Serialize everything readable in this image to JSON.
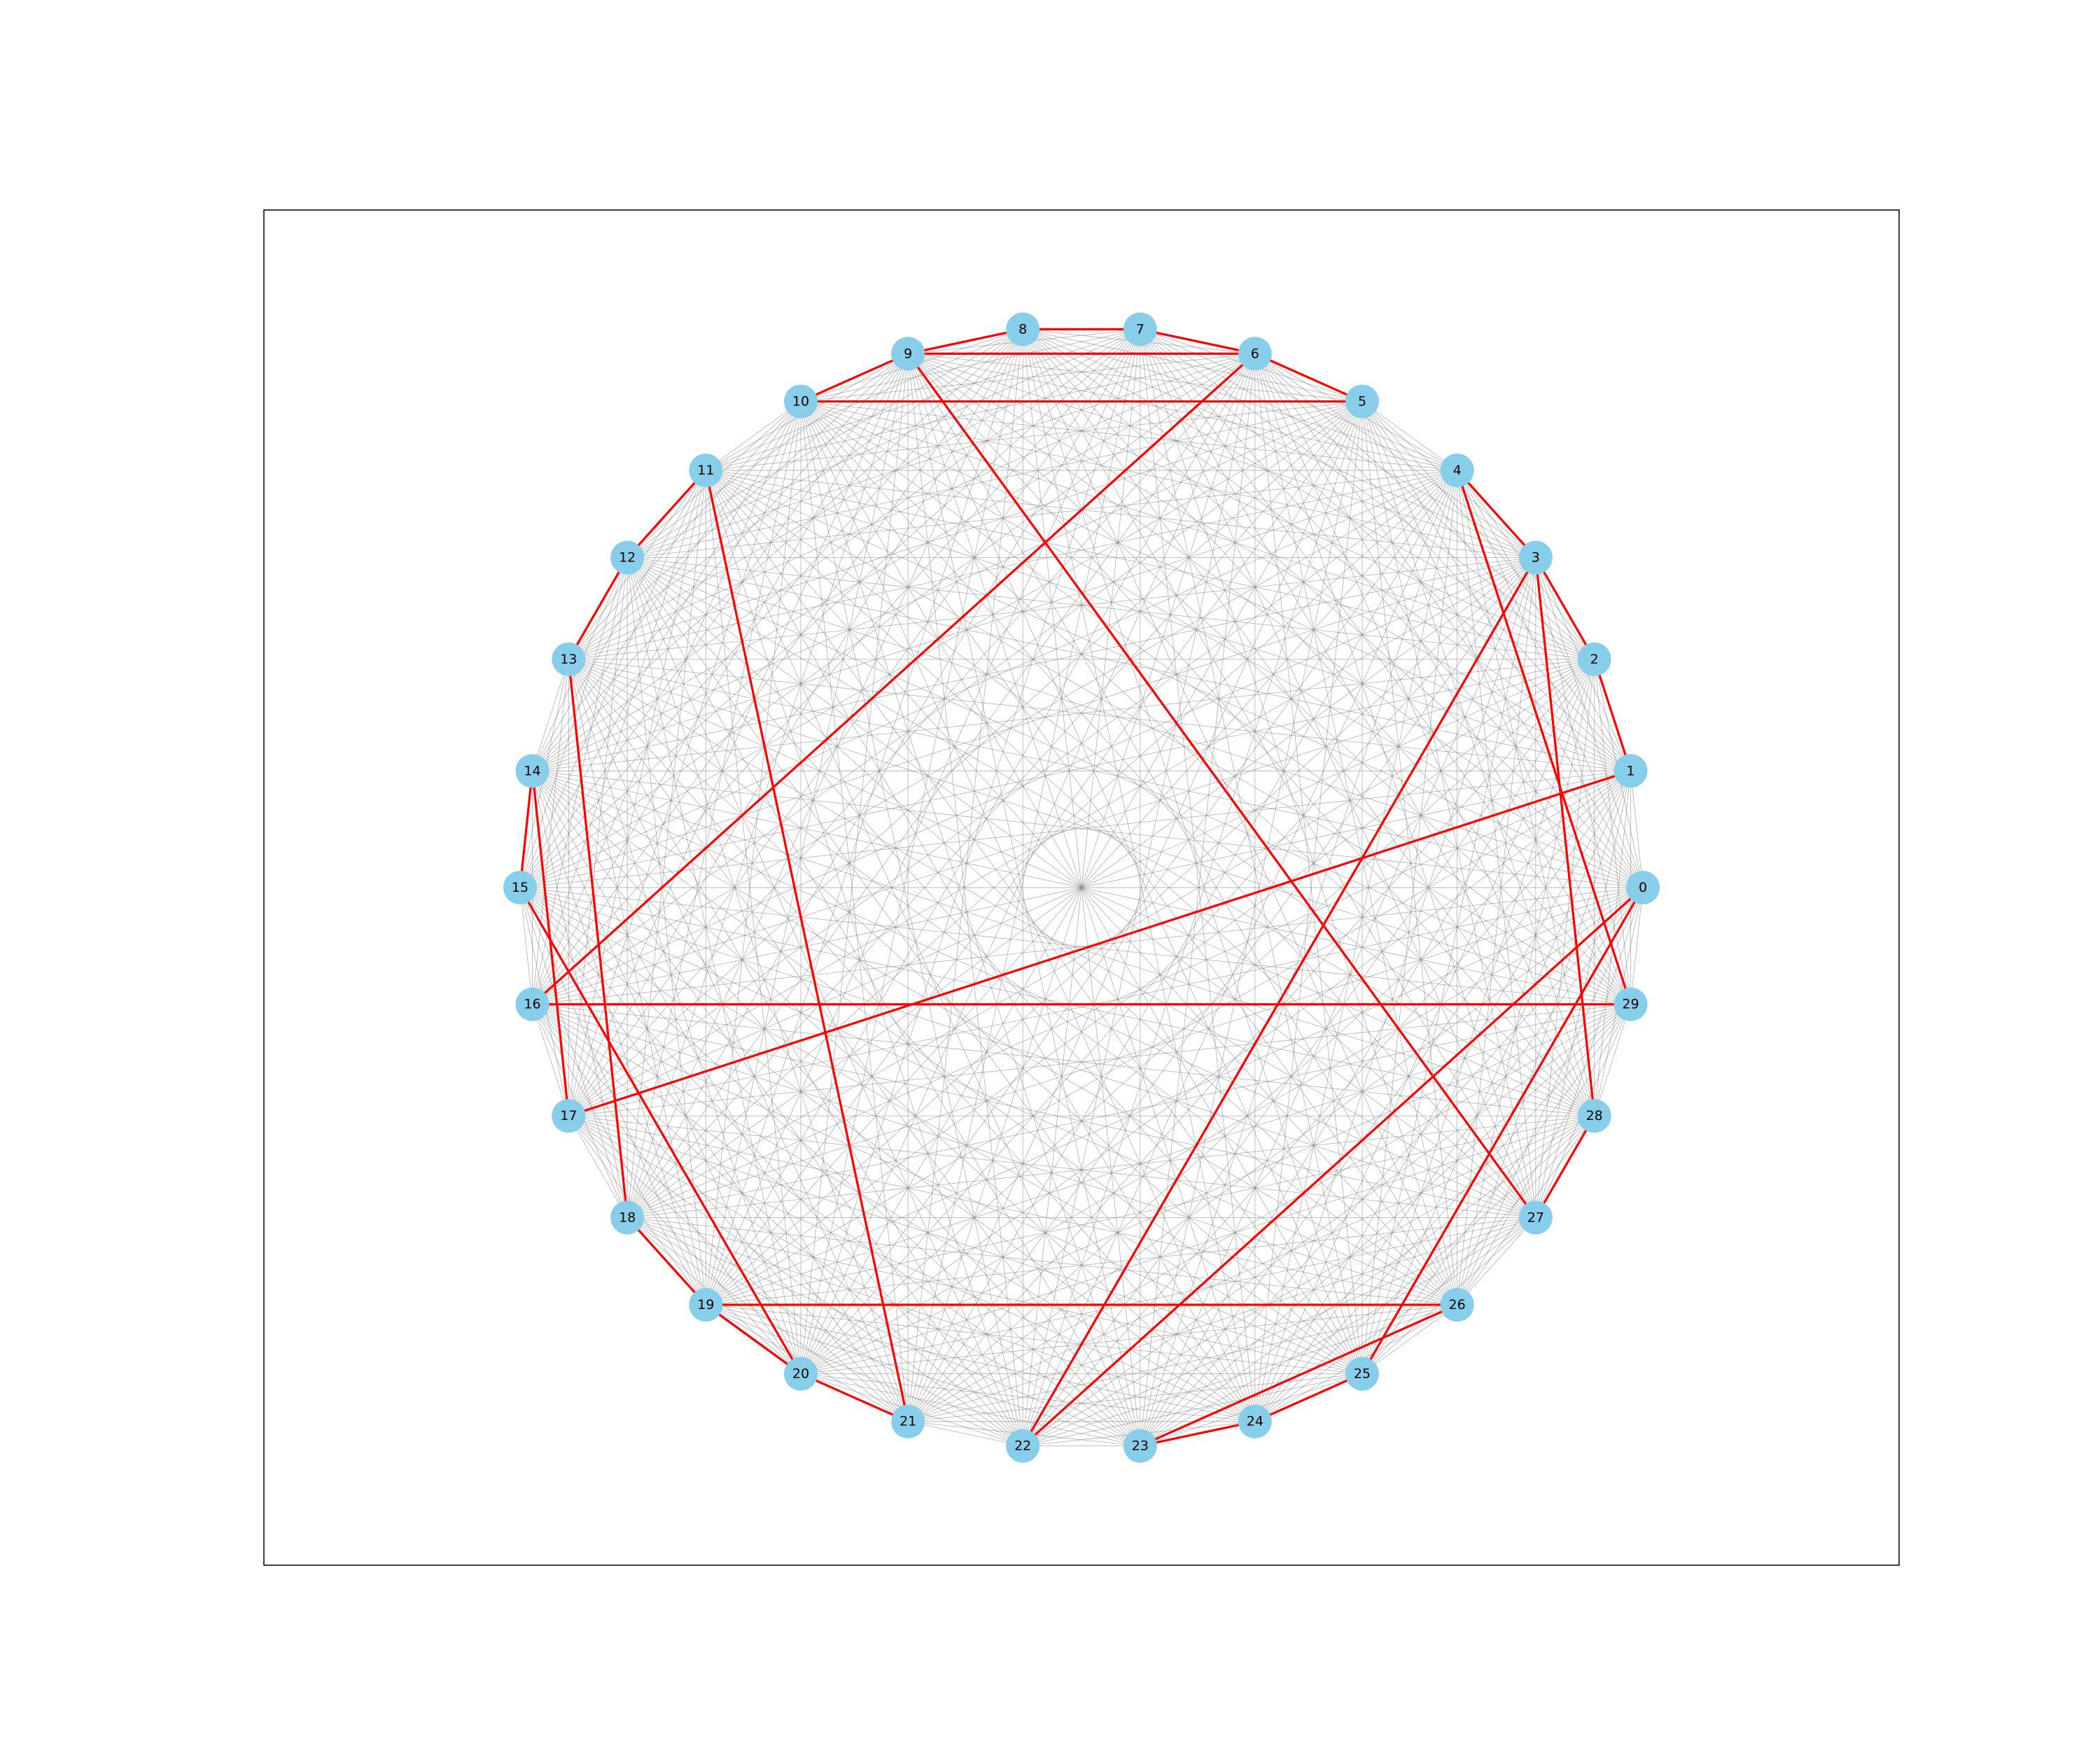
{
  "graph": {
    "type": "complete-graph-circular-layout",
    "node_count": 30,
    "nodes": [
      {
        "id": 0,
        "label": "0"
      },
      {
        "id": 1,
        "label": "1"
      },
      {
        "id": 2,
        "label": "2"
      },
      {
        "id": 3,
        "label": "3"
      },
      {
        "id": 4,
        "label": "4"
      },
      {
        "id": 5,
        "label": "5"
      },
      {
        "id": 6,
        "label": "6"
      },
      {
        "id": 7,
        "label": "7"
      },
      {
        "id": 8,
        "label": "8"
      },
      {
        "id": 9,
        "label": "9"
      },
      {
        "id": 10,
        "label": "10"
      },
      {
        "id": 11,
        "label": "11"
      },
      {
        "id": 12,
        "label": "12"
      },
      {
        "id": 13,
        "label": "13"
      },
      {
        "id": 14,
        "label": "14"
      },
      {
        "id": 15,
        "label": "15"
      },
      {
        "id": 16,
        "label": "16"
      },
      {
        "id": 17,
        "label": "17"
      },
      {
        "id": 18,
        "label": "18"
      },
      {
        "id": 19,
        "label": "19"
      },
      {
        "id": 20,
        "label": "20"
      },
      {
        "id": 21,
        "label": "21"
      },
      {
        "id": 22,
        "label": "22"
      },
      {
        "id": 23,
        "label": "23"
      },
      {
        "id": 24,
        "label": "24"
      },
      {
        "id": 25,
        "label": "25"
      },
      {
        "id": 26,
        "label": "26"
      },
      {
        "id": 27,
        "label": "27"
      },
      {
        "id": 28,
        "label": "28"
      },
      {
        "id": 29,
        "label": "29"
      }
    ],
    "highlighted_path": [
      0,
      22,
      3,
      2,
      1,
      17,
      14,
      15,
      20,
      19,
      26,
      23,
      24,
      25,
      0
    ],
    "highlighted_edges": [
      [
        0,
        22
      ],
      [
        22,
        3
      ],
      [
        3,
        2
      ],
      [
        2,
        1
      ],
      [
        1,
        17
      ],
      [
        17,
        14
      ],
      [
        14,
        15
      ],
      [
        15,
        20
      ],
      [
        20,
        19
      ],
      [
        19,
        26
      ],
      [
        26,
        23
      ],
      [
        23,
        24
      ],
      [
        24,
        25
      ],
      [
        25,
        0
      ],
      [
        3,
        28
      ],
      [
        28,
        27
      ],
      [
        27,
        9
      ],
      [
        9,
        8
      ],
      [
        8,
        7
      ],
      [
        7,
        6
      ],
      [
        6,
        16
      ],
      [
        16,
        29
      ],
      [
        29,
        4
      ],
      [
        4,
        3
      ],
      [
        5,
        10
      ],
      [
        10,
        9
      ],
      [
        9,
        6
      ],
      [
        6,
        5
      ],
      [
        11,
        12
      ],
      [
        12,
        13
      ],
      [
        13,
        18
      ],
      [
        18,
        19
      ],
      [
        19,
        20
      ],
      [
        20,
        21
      ],
      [
        21,
        11
      ]
    ],
    "colors": {
      "node_fill": "#87ceeb",
      "background_edge": "#808080",
      "highlight_edge": "#ff0000",
      "frame": "#000000"
    }
  }
}
